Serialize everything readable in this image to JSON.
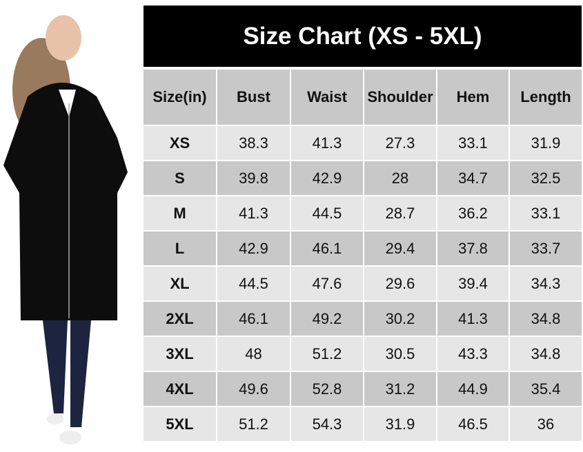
{
  "title": "Size Chart (XS - 5XL)",
  "headers": [
    "Size(in)",
    "Bust",
    "Waist",
    "Shoulder",
    "Hem",
    "Length"
  ],
  "rows": [
    [
      "XS",
      "38.3",
      "41.3",
      "27.3",
      "33.1",
      "31.9"
    ],
    [
      "S",
      "39.8",
      "42.9",
      "28",
      "34.7",
      "32.5"
    ],
    [
      "M",
      "41.3",
      "44.5",
      "28.7",
      "36.2",
      "33.1"
    ],
    [
      "L",
      "42.9",
      "46.1",
      "29.4",
      "37.8",
      "33.7"
    ],
    [
      "XL",
      "44.5",
      "47.6",
      "29.6",
      "39.4",
      "34.3"
    ],
    [
      "2XL",
      "46.1",
      "49.2",
      "30.2",
      "41.3",
      "34.8"
    ],
    [
      "3XL",
      "48",
      "51.2",
      "30.5",
      "43.3",
      "34.8"
    ],
    [
      "4XL",
      "49.6",
      "52.8",
      "31.2",
      "44.9",
      "35.4"
    ],
    [
      "5XL",
      "51.2",
      "54.3",
      "31.9",
      "46.5",
      "36"
    ]
  ],
  "colors": {
    "title_bg": "#000000",
    "header_bg": "#c8c8c8",
    "row_light": "#e6e6e6",
    "row_dark": "#c8c8c8"
  }
}
